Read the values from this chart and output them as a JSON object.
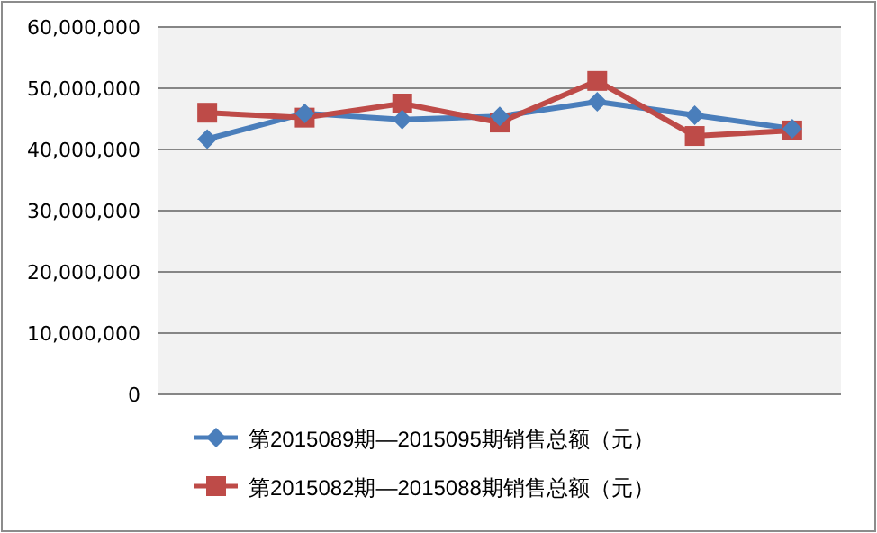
{
  "chart_data": {
    "type": "line",
    "categories": [
      null,
      null,
      null,
      null,
      null,
      null,
      null
    ],
    "series": [
      {
        "name": "第2015089期—2015095期销售总额（元）",
        "color": "#4a7ebb",
        "marker": "diamond",
        "values": [
          41700000,
          45900000,
          44900000,
          45400000,
          47800000,
          45600000,
          43400000
        ]
      },
      {
        "name": "第2015082期—2015088期销售总额（元）",
        "color": "#be4b48",
        "marker": "square",
        "values": [
          46000000,
          45200000,
          47500000,
          44400000,
          51200000,
          42200000,
          43100000
        ]
      }
    ],
    "ylim": [
      0,
      60000000
    ],
    "yticks": [
      {
        "value": 0,
        "label": "0"
      },
      {
        "value": 10000000,
        "label": "10,000,000"
      },
      {
        "value": 20000000,
        "label": "20,000,000"
      },
      {
        "value": 30000000,
        "label": "30,000,000"
      },
      {
        "value": 40000000,
        "label": "40,000,000"
      },
      {
        "value": 50000000,
        "label": "50,000,000"
      },
      {
        "value": 60000000,
        "label": "60,000,000"
      }
    ],
    "grid": "y",
    "legend": "bottom",
    "line_style": "solid"
  }
}
